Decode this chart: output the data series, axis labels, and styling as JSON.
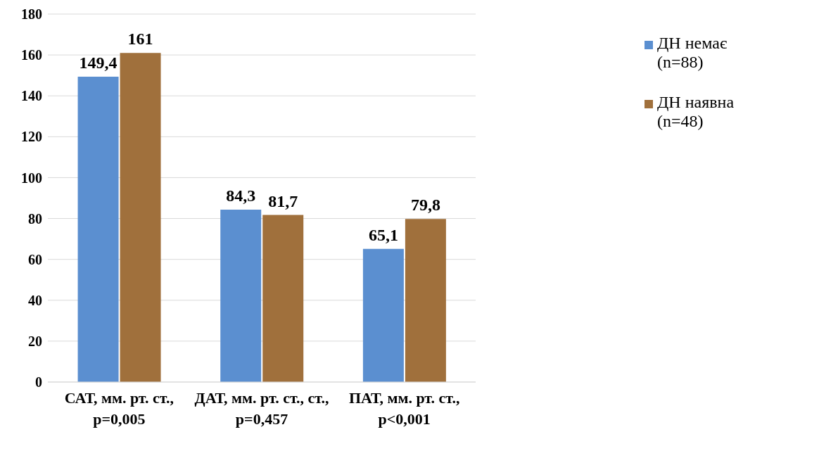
{
  "chart_data": {
    "type": "bar",
    "categories": [
      "САТ, мм. рт. ст.,\np=0,005",
      "ДАТ, мм. рт. ст., ст.,\np=0,457",
      "ПАТ, мм. рт. ст.,\np<0,001"
    ],
    "series": [
      {
        "name": "ДН немає\n(n=88)",
        "color": "#5b8fd0",
        "values": [
          149.4,
          84.3,
          65.1
        ],
        "value_labels": [
          "149,4",
          "84,3",
          "65,1"
        ]
      },
      {
        "name": "ДН наявна\n(n=48)",
        "color": "#a0703c",
        "values": [
          161,
          81.7,
          79.8
        ],
        "value_labels": [
          "161",
          "81,7",
          "79,8"
        ]
      }
    ],
    "ylim": [
      0,
      180
    ],
    "yticks": [
      0,
      20,
      40,
      60,
      80,
      100,
      120,
      140,
      160,
      180
    ],
    "grid": "y",
    "legend": "top right"
  }
}
